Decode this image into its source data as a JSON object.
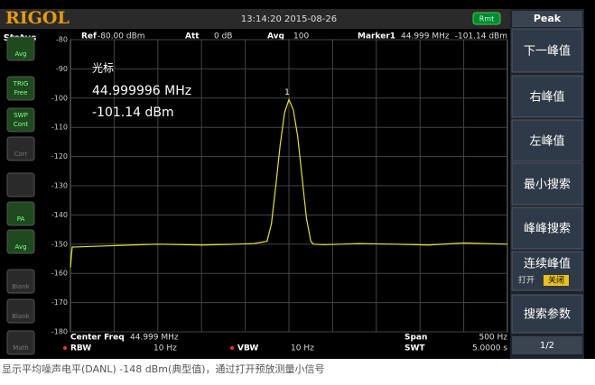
{
  "header": {
    "brand": "RIGOL",
    "datetime": "13:14:20 2015-08-26",
    "remote": "Rmt"
  },
  "status": {
    "title": "Status",
    "icons": [
      "Avg",
      "TRIG",
      "Free",
      "SWP",
      "Cont",
      "Corr",
      "PA",
      "Avg",
      "Blank",
      "Blank",
      "Math"
    ]
  },
  "info": {
    "ref_label": "Ref",
    "ref_value": "-80.00 dBm",
    "att_label": "Att",
    "att_value": "0 dB",
    "avg_label": "Avg",
    "avg_value": "100",
    "marker_label": "Marker1",
    "marker_freq": "44.999 MHz",
    "marker_amp": "-101.14 dBm"
  },
  "marker_box": {
    "title": "光标",
    "freq": "44.999996 MHz",
    "amp": "-101.14 dBm"
  },
  "footer": {
    "center_label": "Center Freq",
    "center_value": "44.999 MHz",
    "span_label": "Span",
    "span_value": "500 Hz",
    "rbw_label": "RBW",
    "rbw_value": "10 Hz",
    "vbw_label": "VBW",
    "vbw_value": "10 Hz",
    "swt_label": "SWT",
    "swt_value": "5.0000 s"
  },
  "softkeys": {
    "title": "Peak",
    "buttons": [
      "下一峰值",
      "右峰值",
      "左峰值",
      "最小搜索",
      "峰峰搜索",
      "连续峰值",
      "搜索参数"
    ],
    "toggle_on": "打开",
    "toggle_off": "关闭",
    "page": "1/2"
  },
  "caption": "显示平均噪声电平(DANL) -148 dBm(典型值)，通过打开预放测量小信号",
  "chart_data": {
    "type": "line",
    "marker_number": "1",
    "color": "#e8e030",
    "xlim": [
      -250,
      250
    ],
    "ylim": [
      -180,
      -80
    ],
    "yticks": [
      -80,
      -90,
      -100,
      -110,
      -120,
      -130,
      -140,
      -150,
      -160,
      -170,
      -180
    ],
    "grid": true,
    "series": [
      {
        "x": [
          -250,
          -248,
          -200,
          -150,
          -100,
          -60,
          -40,
          -25,
          -20,
          -15,
          -10,
          -5,
          0,
          5,
          10,
          15,
          20,
          25,
          28,
          40,
          80,
          120,
          160,
          200,
          250
        ],
        "values": [
          -158,
          -151,
          -150.5,
          -150,
          -150.3,
          -150,
          -149.8,
          -149,
          -143,
          -130,
          -116,
          -105,
          -100.5,
          -104,
          -113,
          -127,
          -141,
          -149,
          -150,
          -150.2,
          -149.8,
          -150,
          -150.3,
          -149.6,
          -150
        ]
      }
    ]
  }
}
